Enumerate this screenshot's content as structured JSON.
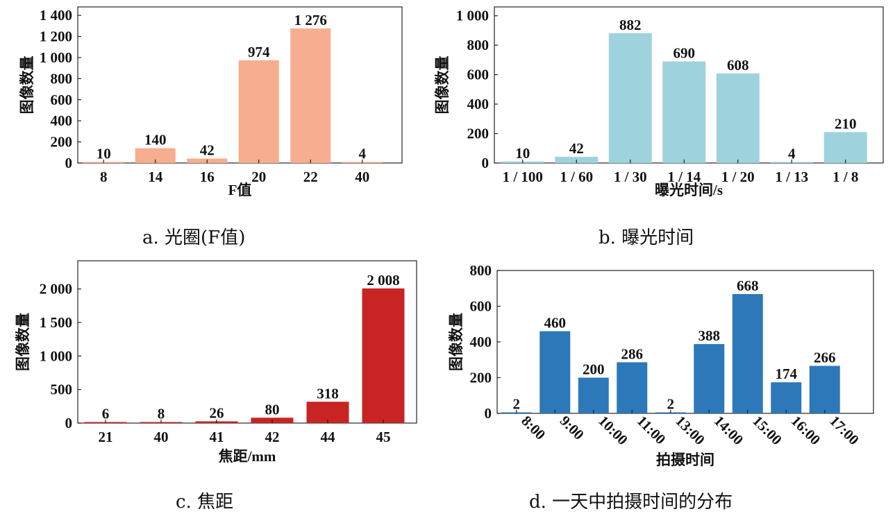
{
  "captions": {
    "a": "a. 光圈(F值)",
    "b": "b. 曝光时间",
    "c": "c. 焦距",
    "d": "d. 一天中拍摄时间的分布"
  },
  "chart_data": [
    {
      "id": "a",
      "type": "bar",
      "categories": [
        "8",
        "14",
        "16",
        "20",
        "22",
        "40"
      ],
      "values": [
        10,
        140,
        42,
        974,
        1276,
        4
      ],
      "value_labels": [
        "10",
        "140",
        "42",
        "974",
        "1 276",
        "4"
      ],
      "xlabel": "F值",
      "ylabel": "图像数量",
      "ylim": [
        0,
        1480
      ],
      "yticks": [
        0,
        200,
        400,
        600,
        800,
        1000,
        1200,
        1400
      ],
      "ytick_labels": [
        "0",
        "200",
        "400",
        "600",
        "800",
        "1 000",
        "1 200",
        "1 400"
      ],
      "color": "#F7AD8F",
      "grid": false
    },
    {
      "id": "b",
      "type": "bar",
      "categories": [
        "1 / 100",
        "1 / 60",
        "1 / 30",
        "1 / 14",
        "1 / 20",
        "1 / 13",
        "1 / 8"
      ],
      "values": [
        10,
        42,
        882,
        690,
        608,
        4,
        210
      ],
      "value_labels": [
        "10",
        "42",
        "882",
        "690",
        "608",
        "4",
        "210"
      ],
      "xlabel": "曝光时间/s",
      "ylabel": "图像数量",
      "ylim": [
        0,
        1060
      ],
      "yticks": [
        0,
        200,
        400,
        600,
        800,
        1000
      ],
      "ytick_labels": [
        "0",
        "200",
        "400",
        "600",
        "800",
        "1 000"
      ],
      "color": "#9ED3DD",
      "grid": false
    },
    {
      "id": "c",
      "type": "bar",
      "categories": [
        "21",
        "40",
        "41",
        "42",
        "44",
        "45"
      ],
      "values": [
        6,
        8,
        26,
        80,
        318,
        2008
      ],
      "value_labels": [
        "6",
        "8",
        "26",
        "80",
        "318",
        "2 008"
      ],
      "xlabel": "焦距/mm",
      "ylabel": "图像数量",
      "ylim": [
        0,
        2420
      ],
      "yticks": [
        0,
        500,
        1000,
        1500,
        2000
      ],
      "ytick_labels": [
        "0",
        "500",
        "1 000",
        "1 500",
        "2 000"
      ],
      "color": "#C82423",
      "grid": false
    },
    {
      "id": "d",
      "type": "bar",
      "categories": [
        "8:00",
        "9:00",
        "10:00",
        "11:00",
        "13:00",
        "14:00",
        "15:00",
        "16:00",
        "17:00"
      ],
      "values": [
        2,
        460,
        200,
        286,
        2,
        388,
        668,
        174,
        266
      ],
      "value_labels": [
        "2",
        "460",
        "200",
        "286",
        "2",
        "388",
        "668",
        "174",
        "266"
      ],
      "xlabel": "拍摄时间",
      "ylabel": "图像数量",
      "ylim": [
        0,
        800
      ],
      "yticks": [
        0,
        200,
        400,
        600,
        800
      ],
      "ytick_labels": [
        "0",
        "200",
        "400",
        "600",
        "800"
      ],
      "color": "#2D78B8",
      "grid": false,
      "xtick_rotation": 45
    }
  ]
}
